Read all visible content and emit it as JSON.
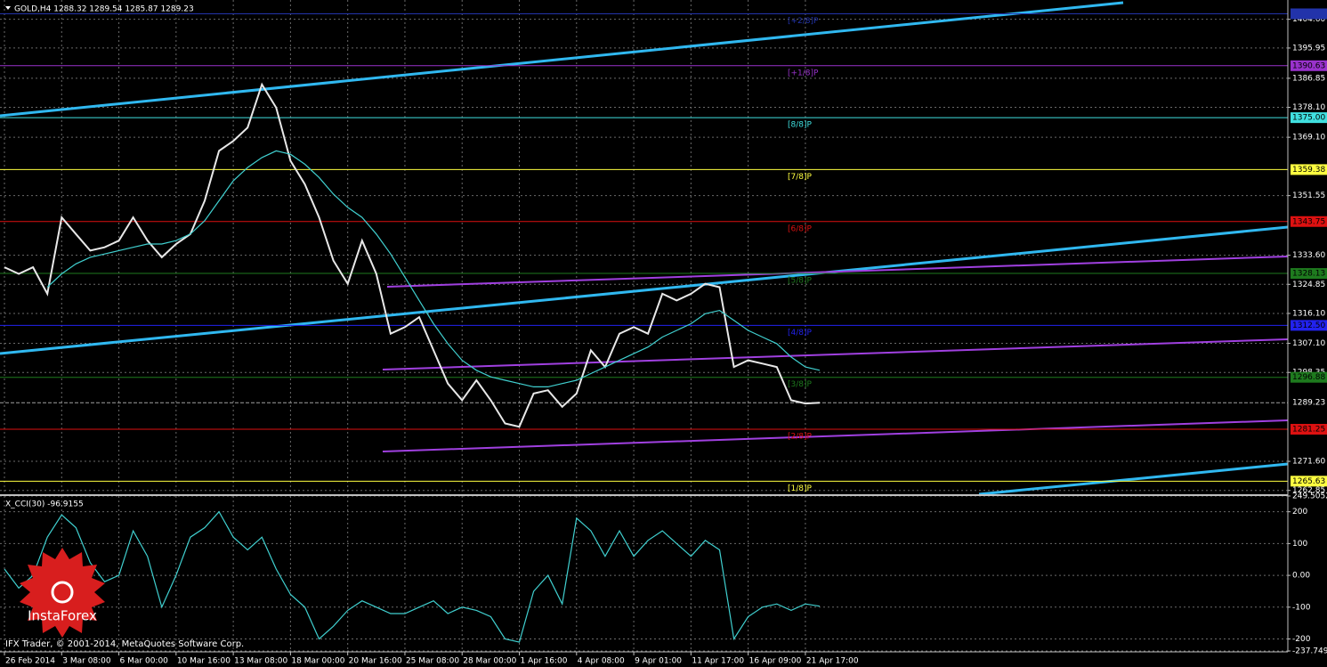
{
  "chart_data": [
    {
      "type": "line",
      "title": "GOLD,H4 1288.32 1289.54 1285.87 1289.23",
      "categories": [
        "26 Feb 2014",
        null,
        null,
        null,
        "3 Mar 08:00",
        null,
        null,
        null,
        "6 Mar 00:00",
        null,
        null,
        null,
        "10 Mar 16:00",
        null,
        null,
        null,
        "13 Mar 08:00",
        null,
        null,
        null,
        "18 Mar 00:00",
        null,
        null,
        null,
        "20 Mar 16:00",
        null,
        null,
        null,
        "25 Mar 08:00",
        null,
        null,
        null,
        "28 Mar 00:00",
        null,
        null,
        null,
        "1 Apr 16:00",
        null,
        null,
        null,
        "4 Apr 08:00",
        null,
        null,
        null,
        "9 Apr 01:00",
        null,
        null,
        null,
        "11 Apr 17:00",
        null,
        null,
        null,
        "16 Apr 09:00",
        null,
        null,
        null,
        "21 Apr 17:00",
        null
      ],
      "series": [
        {
          "color": "#e8e8e8",
          "values": [
            1330,
            1328,
            1330,
            1322,
            1345,
            1340,
            1335,
            1336,
            1338,
            1345,
            1338,
            1333,
            1337,
            1340,
            1350,
            1365,
            1368,
            1372,
            1385,
            1378,
            1362,
            1355,
            1345,
            1332,
            1325,
            1338,
            1328,
            1310,
            1312,
            1315,
            1305,
            1295,
            1290,
            1296,
            1290,
            1283,
            1282,
            1292,
            1293,
            1288,
            1292,
            1305,
            1300,
            1310,
            1312,
            1310,
            1322,
            1320,
            1322,
            1325,
            1324,
            1300,
            1302,
            1301,
            1300,
            1290,
            1289,
            1289.23
          ]
        },
        {
          "color": "#40d0d0",
          "values": [
            null,
            null,
            null,
            1324,
            1328,
            1331,
            1333,
            1334,
            1335,
            1336,
            1337,
            1337,
            1338,
            1340,
            1344,
            1350,
            1356,
            1360,
            1363,
            1365,
            1364,
            1361,
            1357,
            1352,
            1348,
            1345,
            1340,
            1334,
            1327,
            1320,
            1313,
            1307,
            1302,
            1299,
            1297,
            1296,
            1295,
            1294,
            1294,
            1295,
            1296,
            1298,
            1300,
            1302,
            1304,
            1306,
            1309,
            1311,
            1313,
            1316,
            1317,
            1314,
            1311,
            1309,
            1307,
            1303,
            1300,
            1299
          ]
        }
      ],
      "ylim": [
        1261.7,
        1410.4
      ],
      "yticks": [
        {
          "value": 1404.6,
          "label": "1404.60"
        },
        1395.95,
        1386.85,
        {
          "value": 1378.1,
          "label": "1378.10"
        },
        {
          "value": 1369.1,
          "label": "1369.10"
        },
        1351.55,
        {
          "value": 1333.6,
          "label": "1333.60"
        },
        1324.85,
        {
          "value": 1316.1,
          "label": "1316.10"
        },
        {
          "value": 1307.1,
          "label": "1307.10"
        },
        1298.35,
        {
          "value": 1271.6,
          "label": "1271.60"
        },
        1262.85
      ],
      "grid": true,
      "last": 1289.23,
      "levels": [
        {
          "label": "[+2/8]P",
          "value": 1406.25,
          "color": "#2233aa"
        },
        {
          "label": "[+1/8]P",
          "value": 1390.63,
          "value_label": "1390.63",
          "color": "#9932cc"
        },
        {
          "label": "[8/8]P",
          "value": 1375,
          "value_label": "1375.00",
          "color": "#40e0e0"
        },
        {
          "label": "[7/8]P",
          "value": 1359.38,
          "value_label": "1359.38",
          "color": "#ffff40"
        },
        {
          "label": "[6/8]P",
          "value": 1343.75,
          "value_label": "1343.75",
          "color": "#dd1111"
        },
        {
          "label": "[5/8]P",
          "value": 1328.13,
          "value_label": "1328.13",
          "color": "#1e7a1e"
        },
        {
          "label": "[4/8]P",
          "value": 1312.5,
          "value_label": "1312.50",
          "color": "#2222ee"
        },
        {
          "label": "[3/8]P",
          "value": 1296.88,
          "value_label": "1296.88",
          "color": "#1e7a1e"
        },
        {
          "label": "[2/8]P",
          "value": 1281.25,
          "value_label": "1281.25",
          "color": "#dd1111"
        },
        {
          "label": "[1/8]P",
          "value": 1265.63,
          "value_label": "1265.63",
          "color": "#ffff40"
        }
      ]
    },
    {
      "type": "line",
      "title": "X_CCI(30) -96.9155",
      "series": [
        {
          "color": "#40d0d0",
          "values": [
            20,
            -40,
            0,
            120,
            190,
            150,
            40,
            -20,
            0,
            140,
            60,
            -100,
            0,
            120,
            150,
            200,
            120,
            80,
            120,
            20,
            -60,
            -100,
            -200,
            -160,
            -110,
            -80,
            -100,
            -120,
            -120,
            -100,
            -80,
            -120,
            -100,
            -110,
            -130,
            -200,
            -210,
            -50,
            0,
            -90,
            180,
            140,
            60,
            140,
            60,
            110,
            140,
            100,
            60,
            110,
            80,
            -200,
            -130,
            -100,
            -90,
            -110,
            -90,
            -96.9155
          ]
        }
      ],
      "ylim": [
        -237.7497,
        249.5052
      ],
      "yticks": [
        249.5052,
        200,
        100,
        {
          "value": 0,
          "label": "0.00"
        },
        -100,
        -200,
        -237.7497
      ],
      "grid": true
    }
  ],
  "footer": "IFX Trader, © 2001-2014, MetaQuotes Software Corp.",
  "logo": "InstaForex"
}
